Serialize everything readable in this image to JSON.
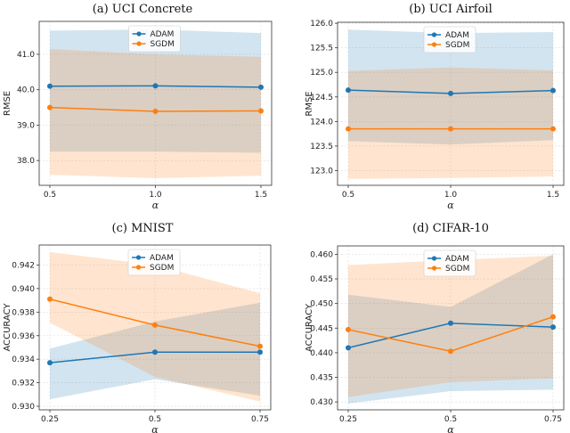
{
  "chart_data": [
    {
      "type": "line",
      "title": "(a) UCI Concrete",
      "xlabel": "α",
      "ylabel": "RMSE",
      "x": [
        0.5,
        1.0,
        1.5
      ],
      "xticks": [
        "0.5",
        "1.0",
        "1.5"
      ],
      "yticks": [
        38.0,
        39.0,
        40.0,
        41.0
      ],
      "ytick_labels": [
        "38.0",
        "39.0",
        "40.0",
        "41.0"
      ],
      "ylim": [
        37.3,
        41.93
      ],
      "grid": true,
      "legend": "top-center",
      "series": [
        {
          "name": "ADAM",
          "color": "#1f77b4",
          "values": [
            40.1,
            40.11,
            40.07
          ],
          "upper": [
            41.67,
            41.7,
            41.6
          ],
          "lower": [
            38.25,
            38.25,
            38.22
          ]
        },
        {
          "name": "SGDM",
          "color": "#ff7f0e",
          "values": [
            39.5,
            39.39,
            39.4
          ],
          "upper": [
            41.15,
            41.0,
            40.93
          ],
          "lower": [
            37.6,
            37.5,
            37.57
          ]
        }
      ]
    },
    {
      "type": "line",
      "title": "(b) UCI Airfoil",
      "xlabel": "α",
      "ylabel": "RMSE",
      "x": [
        0.5,
        1.0,
        1.5
      ],
      "xticks": [
        "0.5",
        "1.0",
        "1.5"
      ],
      "yticks": [
        123.0,
        123.5,
        124.0,
        124.5,
        125.0,
        125.5,
        126.0
      ],
      "ytick_labels": [
        "123.0",
        "123.5",
        "124.0",
        "124.5",
        "125.0",
        "125.5",
        "126.0"
      ],
      "ylim": [
        122.7,
        126.02
      ],
      "grid": true,
      "legend": "top-center",
      "series": [
        {
          "name": "ADAM",
          "color": "#1f77b4",
          "values": [
            124.64,
            124.57,
            124.63
          ],
          "upper": [
            125.87,
            125.8,
            125.82
          ],
          "lower": [
            123.6,
            123.53,
            123.62
          ]
        },
        {
          "name": "SGDM",
          "color": "#ff7f0e",
          "values": [
            123.85,
            123.85,
            123.85
          ],
          "upper": [
            125.03,
            125.1,
            125.04
          ],
          "lower": [
            122.83,
            122.85,
            122.88
          ]
        }
      ]
    },
    {
      "type": "line",
      "title": "(c) MNIST",
      "xlabel": "α",
      "ylabel": "ACCURACY",
      "x": [
        0.25,
        0.5,
        0.75
      ],
      "xticks": [
        "0.25",
        "0.5",
        "0.75"
      ],
      "yticks": [
        0.93,
        0.932,
        0.934,
        0.936,
        0.938,
        0.94,
        0.942
      ],
      "ytick_labels": [
        "0.930",
        "0.932",
        "0.934",
        "0.936",
        "0.938",
        "0.940",
        "0.942"
      ],
      "ylim": [
        0.9297,
        0.9437
      ],
      "grid": true,
      "legend": "top-center",
      "series": [
        {
          "name": "ADAM",
          "color": "#1f77b4",
          "values": [
            0.9337,
            0.9346,
            0.9346
          ],
          "upper": [
            0.9349,
            0.9372,
            0.9388
          ],
          "lower": [
            0.9306,
            0.9323,
            0.9309
          ]
        },
        {
          "name": "SGDM",
          "color": "#ff7f0e",
          "values": [
            0.9391,
            0.9369,
            0.9351
          ],
          "upper": [
            0.9431,
            0.942,
            0.9396
          ],
          "lower": [
            0.9371,
            0.9325,
            0.9304
          ]
        }
      ]
    },
    {
      "type": "line",
      "title": "(d) CIFAR-10",
      "xlabel": "α",
      "ylabel": "ACCURACY",
      "x": [
        0.25,
        0.5,
        0.75
      ],
      "xticks": [
        "0.25",
        "0.5",
        "0.75"
      ],
      "yticks": [
        0.43,
        0.435,
        0.44,
        0.445,
        0.45,
        0.455,
        0.46
      ],
      "ytick_labels": [
        "0.430",
        "0.435",
        "0.440",
        "0.445",
        "0.450",
        "0.455",
        "0.460"
      ],
      "ylim": [
        0.4284,
        0.4617
      ],
      "grid": true,
      "legend": "top-center",
      "series": [
        {
          "name": "ADAM",
          "color": "#1f77b4",
          "values": [
            0.441,
            0.446,
            0.4452
          ],
          "upper": [
            0.4518,
            0.4493,
            0.46
          ],
          "lower": [
            0.4297,
            0.4322,
            0.4325
          ]
        },
        {
          "name": "SGDM",
          "color": "#ff7f0e",
          "values": [
            0.4447,
            0.4403,
            0.4473
          ],
          "upper": [
            0.4578,
            0.4588,
            0.4597
          ],
          "lower": [
            0.431,
            0.434,
            0.4348
          ]
        }
      ]
    }
  ]
}
